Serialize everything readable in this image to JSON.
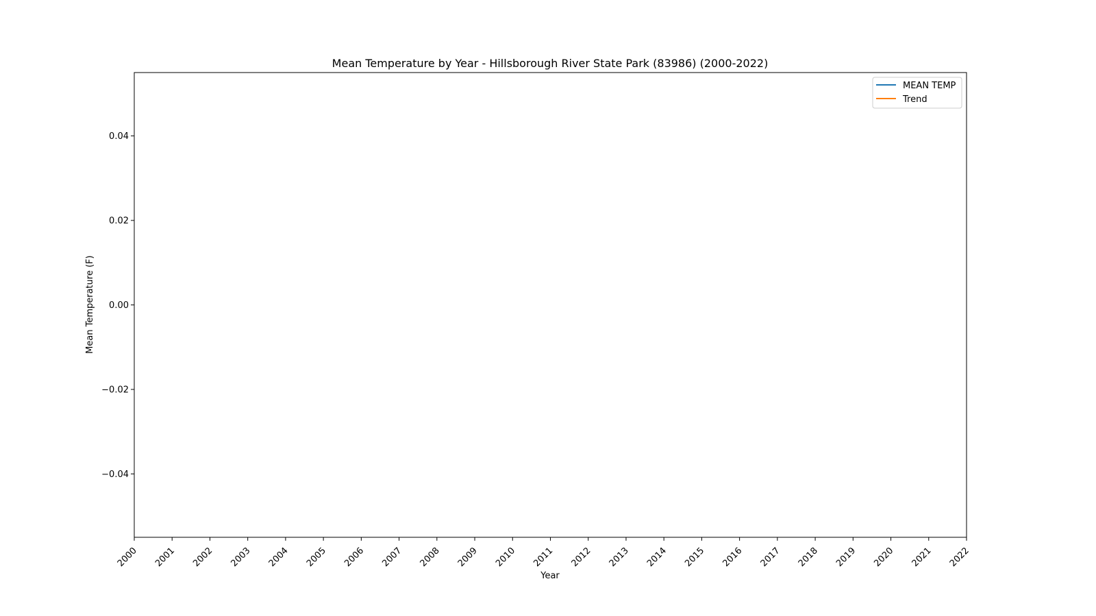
{
  "chart_data": {
    "type": "line",
    "title": "Mean Temperature by Year - Hillsborough River State Park (83986) (2000-2022)",
    "xlabel": "Year",
    "ylabel": "Mean Temperature (F)",
    "x_ticks": [
      "2000",
      "2001",
      "2002",
      "2003",
      "2004",
      "2005",
      "2006",
      "2007",
      "2008",
      "2009",
      "2010",
      "2011",
      "2012",
      "2013",
      "2014",
      "2015",
      "2016",
      "2017",
      "2018",
      "2019",
      "2020",
      "2021",
      "2022"
    ],
    "y_ticks": [
      "0.04",
      "0.02",
      "0.00",
      "−0.02",
      "−0.04"
    ],
    "y_tick_values": [
      0.04,
      0.02,
      0.0,
      -0.02,
      -0.04
    ],
    "xlim": [
      2000,
      2022
    ],
    "ylim": [
      -0.055,
      0.055
    ],
    "grid": false,
    "legend_position": "top-right",
    "series": [
      {
        "name": "MEAN TEMP",
        "color": "#1f77b4",
        "x": [],
        "y": []
      },
      {
        "name": "Trend",
        "color": "#ff7f0e",
        "x": [],
        "y": []
      }
    ]
  }
}
